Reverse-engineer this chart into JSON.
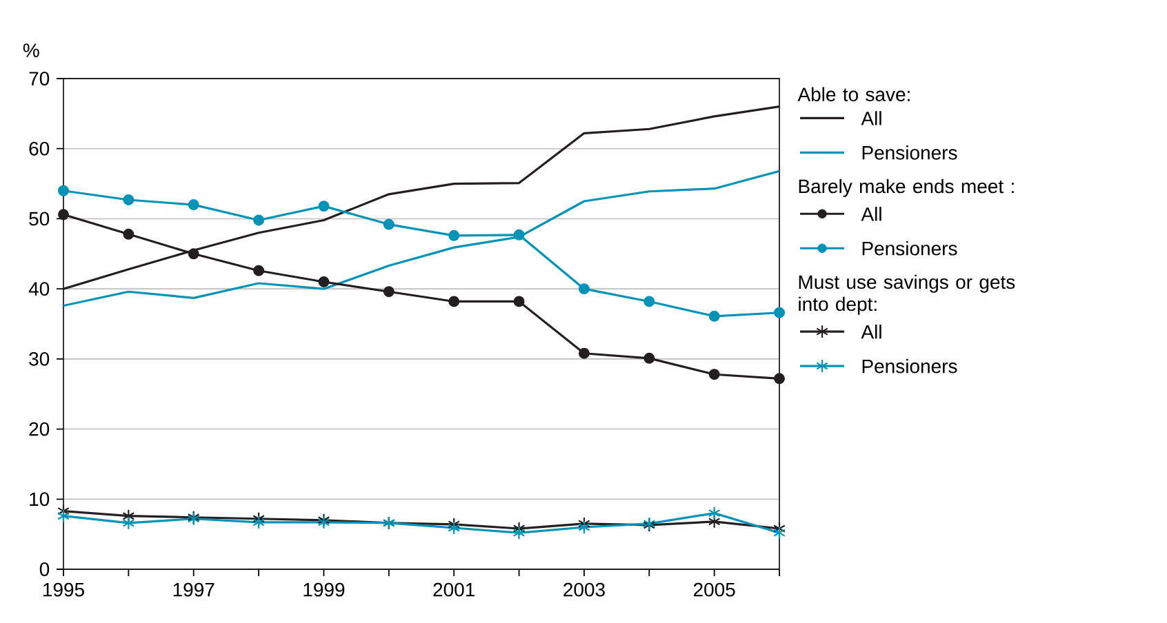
{
  "chart_data": {
    "type": "line",
    "ylabel": "%",
    "x": [
      1995,
      1996,
      1997,
      1998,
      1999,
      2000,
      2001,
      2002,
      2003,
      2004,
      2005,
      2006
    ],
    "xlim": [
      1995,
      2006
    ],
    "ylim": [
      0,
      70
    ],
    "yticks": [
      0,
      10,
      20,
      30,
      40,
      50,
      60,
      70
    ],
    "xticks": [
      1995,
      {
        "value": 1996,
        "label": null
      },
      1997,
      {
        "value": 1998,
        "label": null
      },
      1999,
      {
        "value": 2000,
        "label": null
      },
      2001,
      {
        "value": 2002,
        "label": null
      },
      2003,
      {
        "value": 2004,
        "label": null
      },
      2005,
      {
        "value": 2006,
        "label": null
      }
    ],
    "grid": "y",
    "legend": "right",
    "annotations": [
      "Able to save:",
      "Barely make ends meet :",
      "Must use savings or gets into dept:"
    ],
    "series": [
      {
        "name": "All",
        "color": "#231f20",
        "marker": "none",
        "values": [
          40,
          42.8,
          45.5,
          48,
          49.8,
          53.5,
          55,
          55.1,
          62.2,
          62.8,
          64.6,
          66
        ]
      },
      {
        "name": "Pensioners",
        "color": "#0093b8",
        "marker": "none",
        "values": [
          37.6,
          39.6,
          38.7,
          40.8,
          40,
          43.3,
          45.9,
          47.4,
          52.5,
          53.9,
          54.3,
          56.8
        ]
      },
      {
        "name": "All",
        "color": "#231f20",
        "marker": "circle",
        "values": [
          50.6,
          47.8,
          45,
          42.6,
          41,
          39.6,
          38.2,
          38.2,
          30.8,
          30.1,
          27.8,
          27.2
        ]
      },
      {
        "name": "Pensioners",
        "color": "#0093b8",
        "marker": "circle",
        "values": [
          54,
          52.7,
          52,
          49.8,
          51.8,
          49.2,
          47.6,
          47.7,
          40,
          38.2,
          36.1,
          36.6
        ]
      },
      {
        "name": "All",
        "color": "#231f20",
        "marker": "cross",
        "values": [
          8.3,
          7.6,
          7.4,
          7.2,
          7.0,
          6.6,
          6.4,
          5.8,
          6.5,
          6.3,
          6.8,
          5.8
        ]
      },
      {
        "name": "Pensioners",
        "color": "#0093b8",
        "marker": "cross",
        "values": [
          7.6,
          6.6,
          7.2,
          6.7,
          6.7,
          6.6,
          5.9,
          5.2,
          6.0,
          6.5,
          8.0,
          5.2
        ]
      }
    ]
  }
}
